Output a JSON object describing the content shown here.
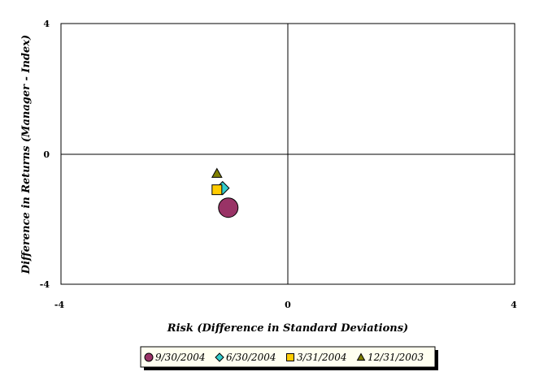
{
  "chart_data": {
    "type": "scatter",
    "title": "",
    "xlabel": "Risk (Difference in Standard Deviations)",
    "ylabel": "Difference in Returns (Manager - Index)",
    "xlim": [
      -4,
      4
    ],
    "ylim": [
      -4,
      4
    ],
    "x_ticks": [
      "-4",
      "0",
      "4"
    ],
    "y_ticks": [
      "4",
      "0",
      "-4"
    ],
    "grid": false,
    "legend_position": "bottom",
    "series": [
      {
        "name": "9/30/2004",
        "x": -1.05,
        "y": -1.65,
        "marker": "circle",
        "color": "#993366"
      },
      {
        "name": "6/30/2004",
        "x": -1.15,
        "y": -1.05,
        "marker": "diamond",
        "color": "#33CCCC"
      },
      {
        "name": "3/31/2004",
        "x": -1.25,
        "y": -1.1,
        "marker": "square",
        "color": "#FFCC00"
      },
      {
        "name": "12/31/2003",
        "x": -1.25,
        "y": -0.6,
        "marker": "triangle",
        "color": "#808000"
      }
    ]
  }
}
